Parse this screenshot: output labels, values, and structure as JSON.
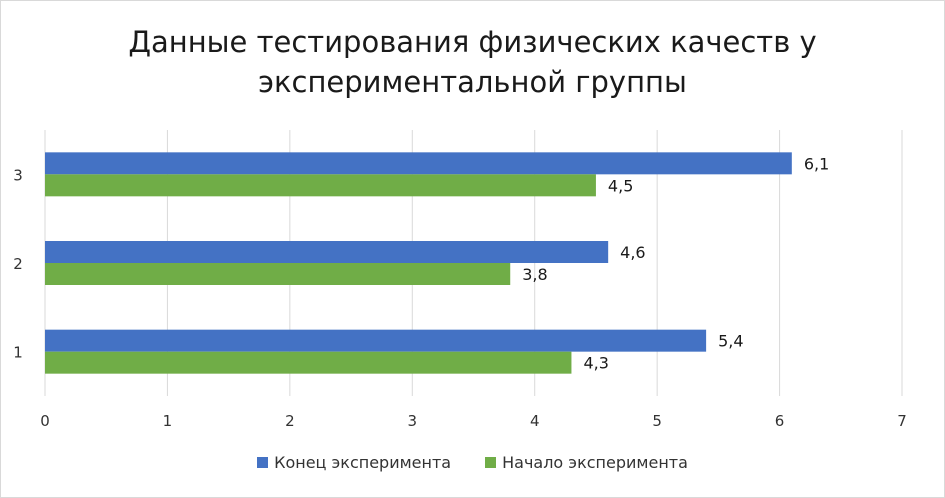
{
  "chart_data": {
    "type": "bar",
    "orientation": "horizontal",
    "title_lines": [
      "Данные тестирования физических качеств у",
      "экспериментальной группы"
    ],
    "categories": [
      "1",
      "2",
      "3"
    ],
    "series": [
      {
        "name": "Конец эксперимента",
        "values": [
          5.4,
          4.6,
          6.1
        ],
        "labels": [
          "5,4",
          "4,6",
          "6,1"
        ],
        "color": "#4472c4"
      },
      {
        "name": "Начало эксперимента",
        "values": [
          4.3,
          3.8,
          4.5
        ],
        "labels": [
          "4,3",
          "3,8",
          "4,5"
        ],
        "color": "#70ad47"
      }
    ],
    "xlim": [
      0,
      7
    ],
    "xticks": [
      0,
      1,
      2,
      3,
      4,
      5,
      6,
      7
    ],
    "grid": true,
    "legend": "bottom"
  }
}
